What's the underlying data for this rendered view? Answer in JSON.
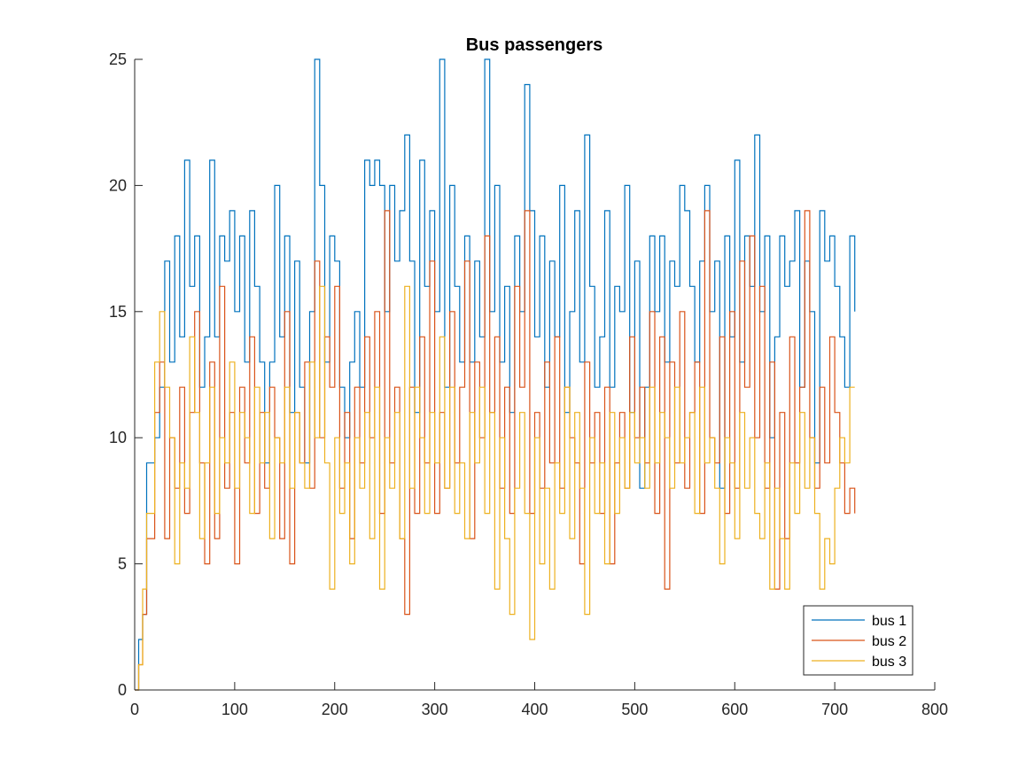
{
  "chart_data": {
    "type": "line",
    "title": "Bus passengers",
    "xlabel": "",
    "ylabel": "",
    "xlim": [
      0,
      800
    ],
    "ylim": [
      0,
      25
    ],
    "xticks": [
      "0",
      "100",
      "200",
      "300",
      "400",
      "500",
      "600",
      "700",
      "800"
    ],
    "yticks": [
      "0",
      "5",
      "10",
      "15",
      "20",
      "25"
    ],
    "grid": false,
    "legend_position": "bottom-right",
    "series": [
      {
        "name": "bus 1",
        "color": "#0072BD",
        "x": [
          0,
          4,
          8,
          12,
          20,
          25,
          30,
          35,
          40,
          45,
          50,
          55,
          60,
          65,
          70,
          75,
          80,
          85,
          90,
          95,
          100,
          105,
          110,
          115,
          120,
          125,
          130,
          135,
          140,
          145,
          150,
          155,
          160,
          165,
          170,
          175,
          180,
          185,
          190,
          195,
          200,
          205,
          210,
          215,
          220,
          225,
          230,
          235,
          240,
          245,
          250,
          255,
          260,
          265,
          270,
          275,
          280,
          285,
          290,
          295,
          300,
          305,
          310,
          315,
          320,
          325,
          330,
          335,
          340,
          345,
          350,
          355,
          360,
          365,
          370,
          375,
          380,
          385,
          390,
          395,
          400,
          405,
          410,
          415,
          420,
          425,
          430,
          435,
          440,
          445,
          450,
          455,
          460,
          465,
          470,
          475,
          480,
          485,
          490,
          495,
          500,
          505,
          510,
          515,
          520,
          525,
          530,
          535,
          540,
          545,
          550,
          555,
          560,
          565,
          570,
          575,
          580,
          585,
          590,
          595,
          600,
          605,
          610,
          615,
          620,
          625,
          630,
          635,
          640,
          645,
          650,
          655,
          660,
          665,
          670,
          675,
          680,
          685,
          690,
          695,
          700,
          705,
          710,
          715,
          720
        ],
        "y": [
          0,
          2,
          3,
          9,
          10,
          12,
          17,
          13,
          18,
          14,
          21,
          16,
          18,
          12,
          14,
          21,
          14,
          18,
          17,
          19,
          15,
          18,
          13,
          19,
          16,
          13,
          9,
          13,
          20,
          14,
          18,
          11,
          17,
          12,
          9,
          15,
          25,
          20,
          13,
          18,
          17,
          12,
          10,
          13,
          15,
          12,
          21,
          20,
          21,
          20,
          15,
          20,
          17,
          19,
          22,
          17,
          11,
          21,
          16,
          19,
          15,
          25,
          12,
          20,
          16,
          13,
          18,
          13,
          17,
          14,
          25,
          15,
          20,
          13,
          16,
          11,
          18,
          15,
          24,
          19,
          14,
          18,
          12,
          17,
          14,
          20,
          11,
          15,
          19,
          13,
          22,
          16,
          12,
          14,
          19,
          12,
          16,
          15,
          20,
          11,
          17,
          8,
          12,
          18,
          15,
          18,
          13,
          17,
          16,
          20,
          19,
          16,
          13,
          17,
          20,
          15,
          17,
          8,
          18,
          14,
          21,
          13,
          18,
          16,
          22,
          15,
          18,
          10,
          14,
          18,
          16,
          17,
          19,
          12,
          17,
          15,
          9,
          19,
          17,
          18,
          16,
          14,
          12,
          18,
          15
        ]
      },
      {
        "name": "bus 2",
        "color": "#D95319",
        "x": [
          0,
          4,
          8,
          12,
          20,
          25,
          30,
          35,
          40,
          45,
          50,
          55,
          60,
          65,
          70,
          75,
          80,
          85,
          90,
          95,
          100,
          105,
          110,
          115,
          120,
          125,
          130,
          135,
          140,
          145,
          150,
          155,
          160,
          165,
          170,
          175,
          180,
          185,
          190,
          195,
          200,
          205,
          210,
          215,
          220,
          225,
          230,
          235,
          240,
          245,
          250,
          255,
          260,
          265,
          270,
          275,
          280,
          285,
          290,
          295,
          300,
          305,
          310,
          315,
          320,
          325,
          330,
          335,
          340,
          345,
          350,
          355,
          360,
          365,
          370,
          375,
          380,
          385,
          390,
          395,
          400,
          405,
          410,
          415,
          420,
          425,
          430,
          435,
          440,
          445,
          450,
          455,
          460,
          465,
          470,
          475,
          480,
          485,
          490,
          495,
          500,
          505,
          510,
          515,
          520,
          525,
          530,
          535,
          540,
          545,
          550,
          555,
          560,
          565,
          570,
          575,
          580,
          585,
          590,
          595,
          600,
          605,
          610,
          615,
          620,
          625,
          630,
          635,
          640,
          645,
          650,
          655,
          660,
          665,
          670,
          675,
          680,
          685,
          690,
          695,
          700,
          705,
          710,
          715,
          720
        ],
        "y": [
          0,
          1,
          3,
          6,
          11,
          13,
          6,
          10,
          8,
          12,
          7,
          11,
          15,
          9,
          5,
          13,
          6,
          16,
          8,
          11,
          5,
          12,
          9,
          14,
          7,
          11,
          8,
          12,
          10,
          6,
          15,
          5,
          11,
          9,
          13,
          8,
          17,
          10,
          14,
          12,
          16,
          8,
          11,
          6,
          12,
          9,
          14,
          10,
          15,
          7,
          19,
          9,
          12,
          6,
          3,
          12,
          7,
          14,
          9,
          17,
          7,
          11,
          8,
          15,
          9,
          12,
          17,
          6,
          13,
          10,
          18,
          11,
          14,
          8,
          12,
          7,
          16,
          12,
          19,
          7,
          11,
          8,
          13,
          9,
          14,
          8,
          12,
          10,
          9,
          5,
          13,
          9,
          11,
          7,
          12,
          5,
          9,
          11,
          8,
          14,
          10,
          12,
          9,
          15,
          7,
          14,
          4,
          13,
          9,
          15,
          8,
          11,
          13,
          7,
          19,
          10,
          9,
          14,
          7,
          15,
          8,
          17,
          12,
          18,
          10,
          16,
          8,
          13,
          4,
          11,
          6,
          14,
          9,
          12,
          19,
          10,
          8,
          12,
          9,
          14,
          11,
          9,
          7,
          8,
          7
        ]
      },
      {
        "name": "bus 3",
        "color": "#EDB120",
        "x": [
          0,
          4,
          8,
          12,
          20,
          25,
          30,
          35,
          40,
          45,
          50,
          55,
          60,
          65,
          70,
          75,
          80,
          85,
          90,
          95,
          100,
          105,
          110,
          115,
          120,
          125,
          130,
          135,
          140,
          145,
          150,
          155,
          160,
          165,
          170,
          175,
          180,
          185,
          190,
          195,
          200,
          205,
          210,
          215,
          220,
          225,
          230,
          235,
          240,
          245,
          250,
          255,
          260,
          265,
          270,
          275,
          280,
          285,
          290,
          295,
          300,
          305,
          310,
          315,
          320,
          325,
          330,
          335,
          340,
          345,
          350,
          355,
          360,
          365,
          370,
          375,
          380,
          385,
          390,
          395,
          400,
          405,
          410,
          415,
          420,
          425,
          430,
          435,
          440,
          445,
          450,
          455,
          460,
          465,
          470,
          475,
          480,
          485,
          490,
          495,
          500,
          505,
          510,
          515,
          520,
          525,
          530,
          535,
          540,
          545,
          550,
          555,
          560,
          565,
          570,
          575,
          580,
          585,
          590,
          595,
          600,
          605,
          610,
          615,
          620,
          625,
          630,
          635,
          640,
          645,
          650,
          655,
          660,
          665,
          670,
          675,
          680,
          685,
          690,
          695,
          700,
          705,
          710,
          715,
          720
        ],
        "y": [
          0,
          1,
          4,
          7,
          13,
          15,
          12,
          10,
          5,
          9,
          8,
          14,
          11,
          6,
          9,
          12,
          7,
          10,
          9,
          13,
          8,
          11,
          10,
          7,
          12,
          9,
          11,
          6,
          10,
          9,
          12,
          8,
          11,
          9,
          8,
          13,
          10,
          16,
          9,
          4,
          10,
          7,
          9,
          5,
          10,
          8,
          11,
          6,
          12,
          4,
          10,
          8,
          11,
          6,
          16,
          8,
          12,
          10,
          7,
          11,
          9,
          14,
          8,
          12,
          7,
          9,
          6,
          11,
          9,
          12,
          7,
          11,
          4,
          10,
          6,
          3,
          8,
          11,
          7,
          2,
          10,
          5,
          8,
          4,
          9,
          7,
          12,
          6,
          11,
          8,
          3,
          10,
          7,
          9,
          5,
          11,
          7,
          10,
          8,
          11,
          9,
          10,
          8,
          12,
          9,
          11,
          10,
          8,
          12,
          9,
          10,
          11,
          7,
          12,
          9,
          10,
          8,
          5,
          10,
          9,
          6,
          11,
          8,
          10,
          7,
          6,
          9,
          4,
          8,
          6,
          4,
          9,
          7,
          11,
          8,
          10,
          7,
          4,
          6,
          5,
          8,
          10,
          9,
          12,
          12
        ]
      }
    ]
  }
}
